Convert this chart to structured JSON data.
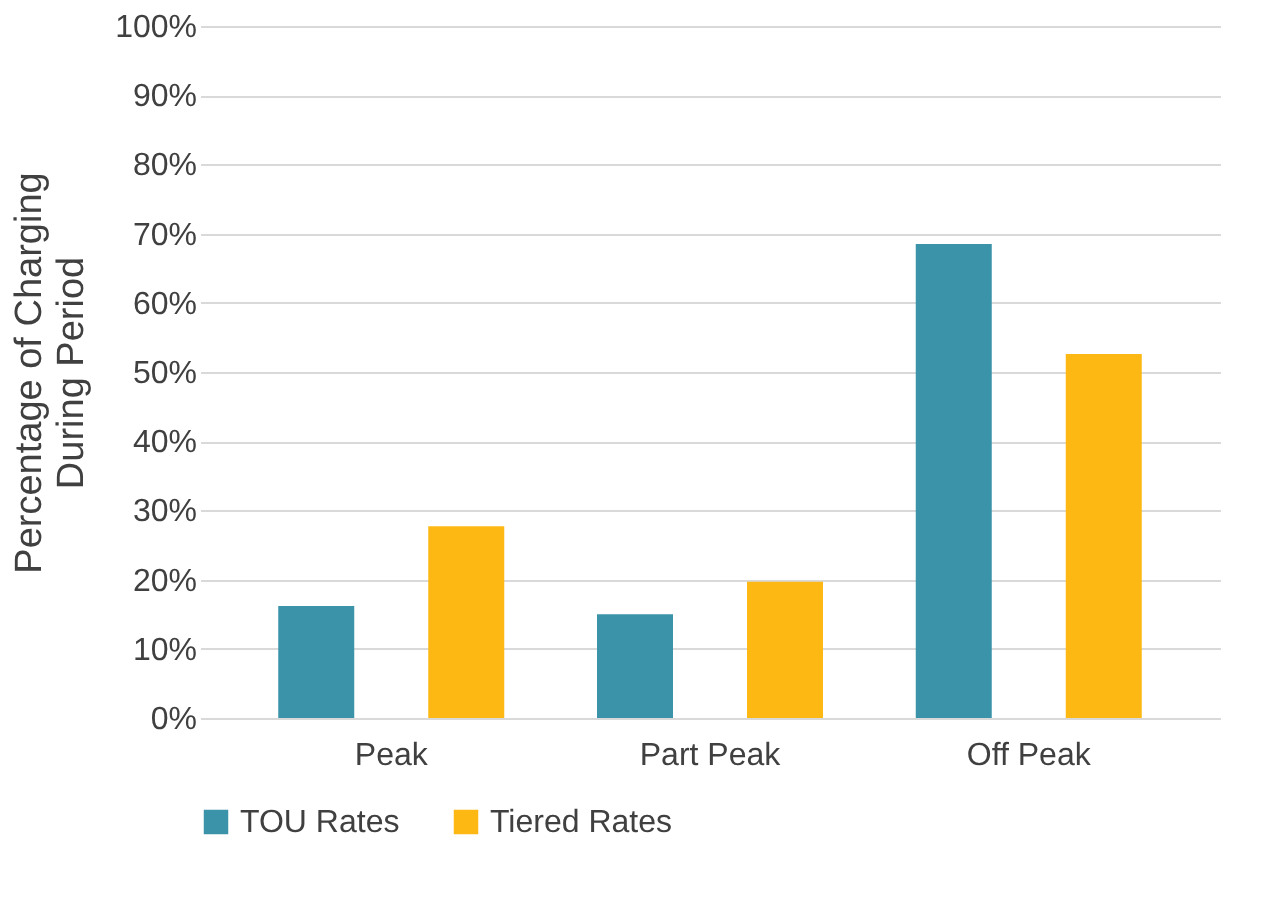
{
  "chart_data": {
    "type": "bar",
    "ylabel": "Percentage of Charging During Period",
    "categories": [
      "Peak",
      "Part Peak",
      "Off Peak"
    ],
    "series": [
      {
        "name": "TOU Rates",
        "color": "#3a93a8",
        "values": [
          16.2,
          15.0,
          68.5
        ]
      },
      {
        "name": "Tiered Rates",
        "color": "#fdb813",
        "values": [
          27.7,
          19.7,
          52.6
        ]
      }
    ],
    "ylim": [
      0,
      100
    ],
    "yticks": [
      {
        "value": 0,
        "label": "0%"
      },
      {
        "value": 10,
        "label": "10%"
      },
      {
        "value": 20,
        "label": "20%"
      },
      {
        "value": 30,
        "label": "30%"
      },
      {
        "value": 40,
        "label": "40%"
      },
      {
        "value": 50,
        "label": "50%"
      },
      {
        "value": 60,
        "label": "60%"
      },
      {
        "value": 70,
        "label": "70%"
      },
      {
        "value": 80,
        "label": "80%"
      },
      {
        "value": 90,
        "label": "90%"
      },
      {
        "value": 100,
        "label": "100%"
      }
    ],
    "grid": "y",
    "legend": "bottom"
  }
}
